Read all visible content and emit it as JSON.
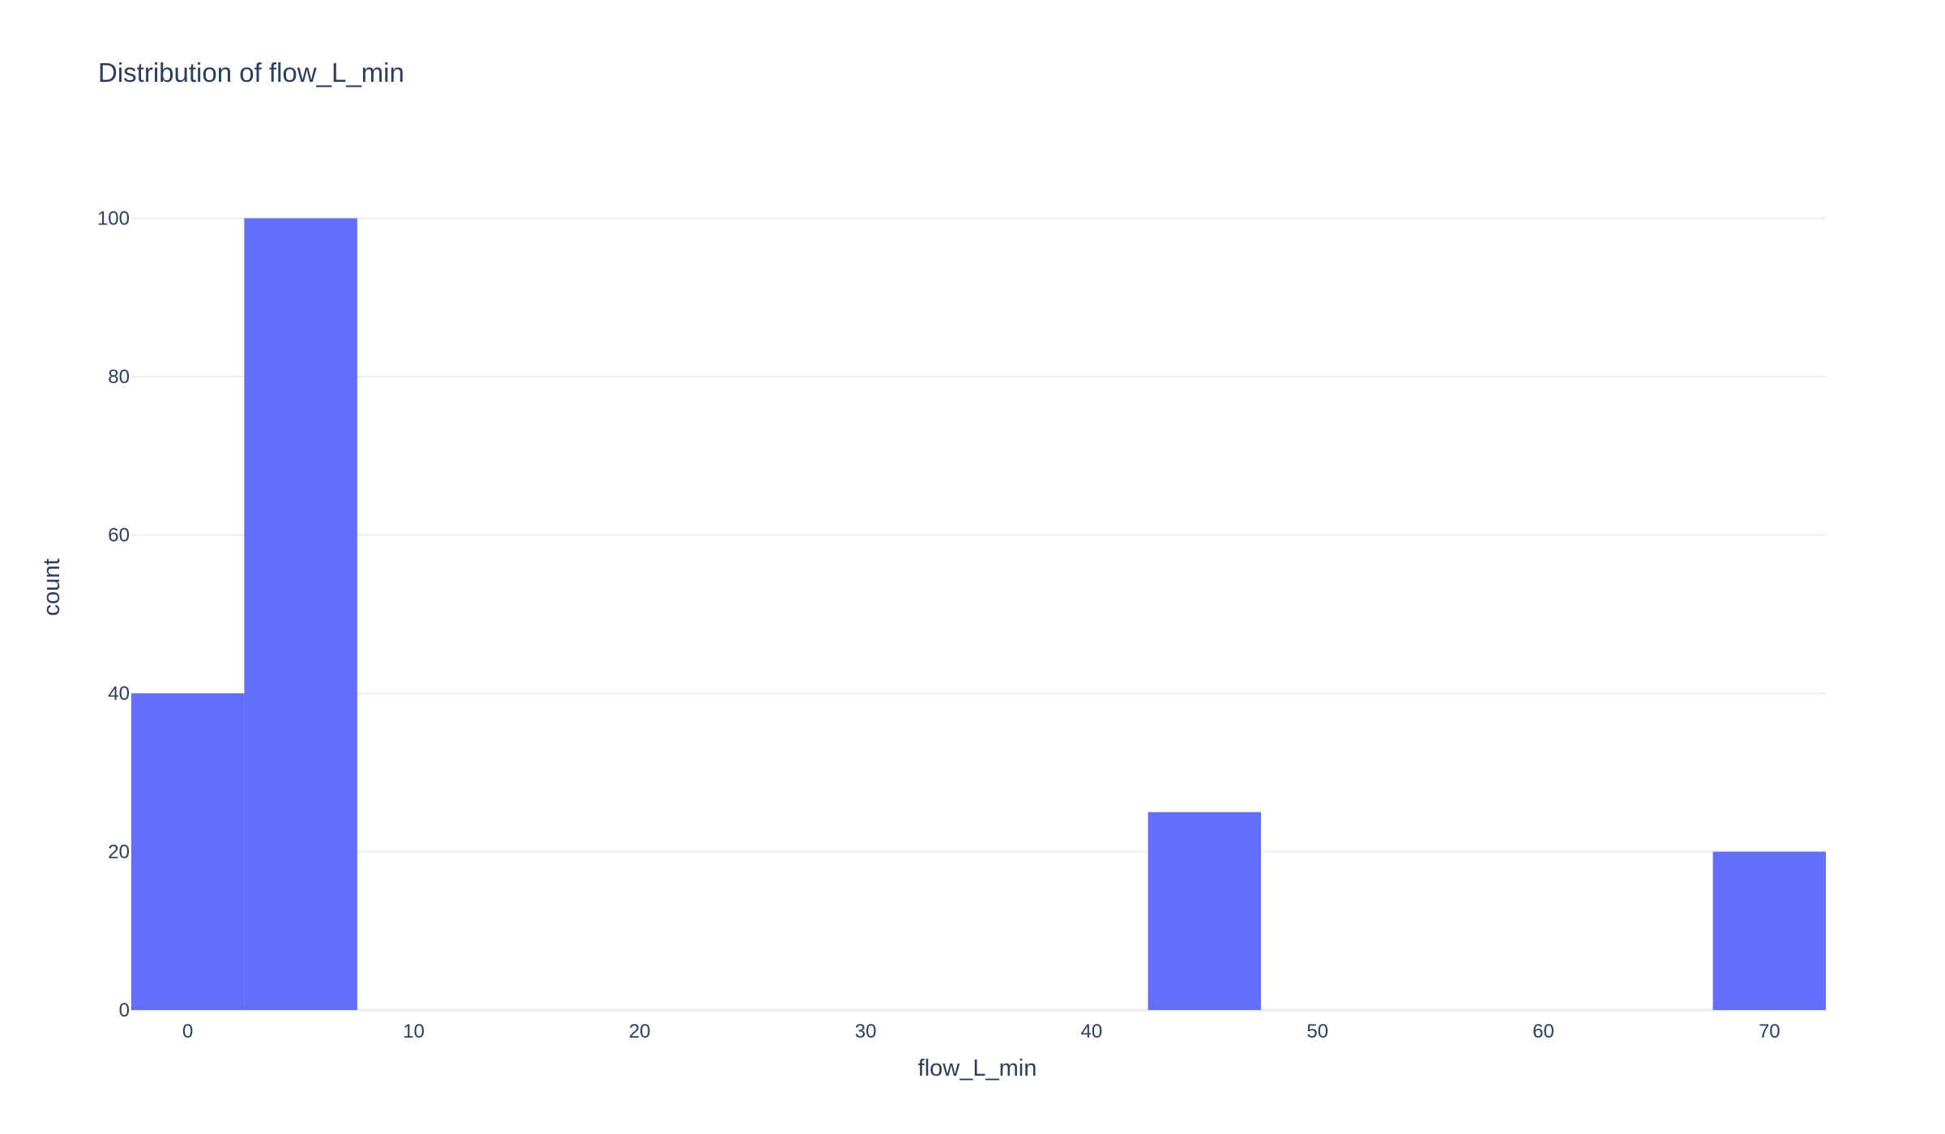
{
  "chart_data": {
    "type": "bar",
    "title": "Distribution of flow_L_min",
    "xlabel": "flow_L_min",
    "ylabel": "count",
    "bins": [
      {
        "x0": -2.5,
        "x1": 2.5,
        "count": 40
      },
      {
        "x0": 2.5,
        "x1": 7.5,
        "count": 100
      },
      {
        "x0": 42.5,
        "x1": 47.5,
        "count": 25
      },
      {
        "x0": 67.5,
        "x1": 72.5,
        "count": 20
      }
    ],
    "xlim": [
      -2.5,
      72.5
    ],
    "ylim": [
      0,
      105.26
    ],
    "xticks": [
      "0",
      "10",
      "20",
      "30",
      "40",
      "50",
      "60",
      "70"
    ],
    "xtick_values": [
      0,
      10,
      20,
      30,
      40,
      50,
      60,
      70
    ],
    "yticks": [
      "0",
      "20",
      "40",
      "60",
      "80",
      "100"
    ],
    "ytick_values": [
      0,
      20,
      40,
      60,
      80,
      100
    ],
    "bar_color": "#636efa",
    "grid": true,
    "legend": "none"
  }
}
